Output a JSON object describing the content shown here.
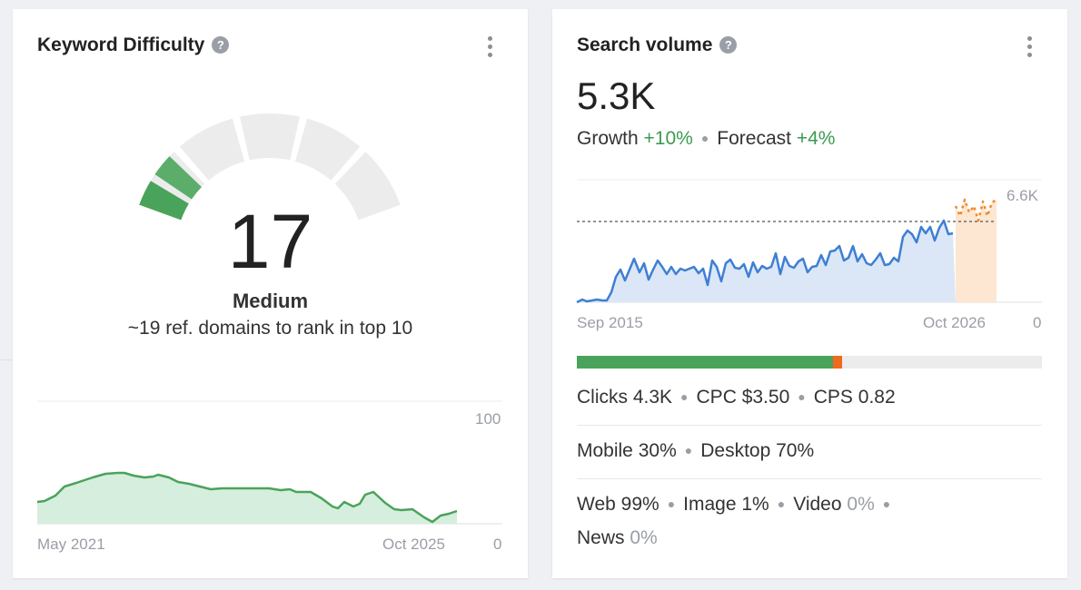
{
  "keyword_difficulty": {
    "title": "Keyword Difficulty",
    "help_icon": "question-circle-icon",
    "menu_icon": "more-vertical-icon",
    "score": "17",
    "score_value": 17,
    "level": "Medium",
    "ref_domains_text": "~19 ref. domains to rank in top 10",
    "chart": {
      "y_max_label": "100",
      "y_min_label": "0",
      "start_label": "May 2021",
      "end_label": "Oct 2025"
    },
    "colors": {
      "gauge_fill": "#4aa35a",
      "gauge_track": "#ececec",
      "trend_line": "#4aa35a"
    }
  },
  "search_volume": {
    "title": "Search volume",
    "help_icon": "question-circle-icon",
    "menu_icon": "more-vertical-icon",
    "volume": "5.3K",
    "growth_label": "Growth",
    "growth_value": "+10%",
    "forecast_label": "Forecast",
    "forecast_value": "+4%",
    "chart": {
      "y_max_label": "6.6K",
      "y_min_label": "0",
      "start_label": "Sep 2015",
      "end_label": "Oct 2026"
    },
    "clicks_bar": {
      "organic_fraction": 0.55,
      "paid_fraction": 0.02
    },
    "clicks_label": "Clicks",
    "clicks_value": "4.3K",
    "cpc_label": "CPC",
    "cpc_value": "$3.50",
    "cps_label": "CPS",
    "cps_value": "0.82",
    "mobile_label": "Mobile",
    "mobile_value": "30%",
    "desktop_label": "Desktop",
    "desktop_value": "70%",
    "web_label": "Web",
    "web_value": "99%",
    "image_label": "Image",
    "image_value": "1%",
    "video_label": "Video",
    "video_value": "0%",
    "news_label": "News",
    "news_value": "0%",
    "colors": {
      "line": "#3e7fd3",
      "forecast": "#f08a2a",
      "bar_green": "#4aa35a",
      "bar_orange": "#f06a1d"
    }
  }
}
